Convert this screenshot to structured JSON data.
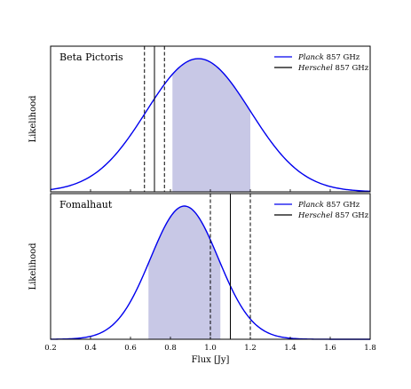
{
  "chart_data": {
    "type": "line",
    "shared_x_axis": {
      "label": "Flux [Jy]",
      "range": [
        0.2,
        1.8
      ],
      "ticks": [
        0.2,
        0.4,
        0.6,
        0.8,
        1.0,
        1.2,
        1.4,
        1.6,
        1.8
      ],
      "tick_labels": [
        "0.2",
        "0.4",
        "0.6",
        "0.8",
        "1.0",
        "1.2",
        "1.4",
        "1.6",
        "1.8"
      ]
    },
    "panels": [
      {
        "title": "Beta Pictoris",
        "ylabel": "Likelihood",
        "series": [
          {
            "name_italic": "Planck",
            "name_rest": " 857 GHz",
            "color": "#0000ee",
            "kind": "gaussian",
            "mean": 0.94,
            "sigma": 0.26
          },
          {
            "name_italic": "Herschel",
            "name_rest": " 857 GHz",
            "color": "#000000",
            "kind": "vline",
            "value": 0.72,
            "lower": 0.67,
            "upper": 0.77
          }
        ],
        "shaded_interval": [
          0.81,
          1.2
        ],
        "shade_color": "#c8c8e6",
        "legend_position": "top-right"
      },
      {
        "title": "Fomalhaut",
        "ylabel": "Likelihood",
        "series": [
          {
            "name_italic": "Planck",
            "name_rest": " 857 GHz",
            "color": "#0000ee",
            "kind": "gaussian",
            "mean": 0.87,
            "sigma": 0.17
          },
          {
            "name_italic": "Herschel",
            "name_rest": " 857 GHz",
            "color": "#000000",
            "kind": "vline",
            "value": 1.1,
            "lower": 1.0,
            "upper": 1.2
          }
        ],
        "shaded_interval": [
          0.69,
          1.05
        ],
        "shade_color": "#c8c8e6",
        "legend_position": "top-right"
      }
    ]
  }
}
